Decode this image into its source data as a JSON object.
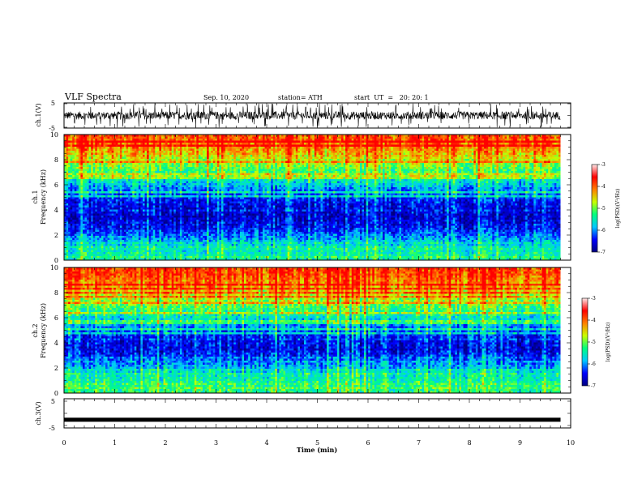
{
  "header": {
    "title": "VLF Spectra",
    "date": "Sep. 10, 2020",
    "station": "station= ATH",
    "start_time": "start  UT  =   20: 20: 1"
  },
  "chart_data": [
    {
      "type": "line",
      "name": "ch1-waveform",
      "ylabel": "ch.1(V)",
      "ylim": [
        -5,
        5
      ],
      "yticks": [
        "5",
        "-5"
      ],
      "xlim": [
        0,
        10
      ],
      "description_values": {
        "data_extent_min": 9.8,
        "typical_envelope": [
          -2.5,
          2.5
        ]
      }
    },
    {
      "type": "heatmap",
      "name": "ch1-spectrogram",
      "ylabel_line1": "ch.1",
      "ylabel_line2": "Frequency (kHz)",
      "ylim": [
        0,
        10
      ],
      "yticks": [
        "0",
        "2",
        "4",
        "6",
        "8",
        "10"
      ],
      "xlim": [
        0,
        10
      ],
      "data_extent_min": 9.8,
      "frequency_profile_kHz": [
        0.5,
        1.5,
        2.5,
        3.5,
        4.5,
        5.5,
        6.5,
        7.5,
        8.5,
        9.5
      ],
      "log_psd_profile": [
        -5.2,
        -5.6,
        -6.3,
        -6.6,
        -6.4,
        -5.9,
        -5.2,
        -4.6,
        -3.9,
        -3.4
      ],
      "colorbar": {
        "label": "log(PSD)(V²/Hz)",
        "range": [
          -7,
          -3
        ],
        "ticks": [
          "-3",
          "-4",
          "-5",
          "-6",
          "-7"
        ]
      }
    },
    {
      "type": "heatmap",
      "name": "ch2-spectrogram",
      "ylabel_line1": "ch.2",
      "ylabel_line2": "Frequency (kHz)",
      "ylim": [
        0,
        10
      ],
      "yticks": [
        "0",
        "2",
        "4",
        "6",
        "8",
        "10"
      ],
      "xlim": [
        0,
        10
      ],
      "data_extent_min": 9.8,
      "frequency_profile_kHz": [
        0.5,
        1.5,
        2.5,
        3.5,
        4.5,
        5.5,
        6.5,
        7.5,
        8.5,
        9.5
      ],
      "log_psd_profile": [
        -5.0,
        -5.3,
        -6.0,
        -6.5,
        -6.3,
        -5.7,
        -5.0,
        -4.4,
        -3.8,
        -3.3
      ],
      "colorbar": {
        "label": "log(PSD)(V²/Hz)",
        "range": [
          -7,
          -3
        ],
        "ticks": [
          "-3",
          "-4",
          "-5",
          "-6",
          "-7"
        ]
      }
    },
    {
      "type": "line",
      "name": "ch3-waveform",
      "ylabel": "ch.3(V)",
      "ylim": [
        -5,
        5
      ],
      "yticks": [
        "5",
        "-5"
      ],
      "xlim": [
        0,
        10
      ],
      "xlabel": "Time (min)",
      "xticks": [
        "0",
        "1",
        "2",
        "3",
        "4",
        "5",
        "6",
        "7",
        "8",
        "9",
        "10"
      ],
      "description_values": {
        "data_extent_min": 9.8,
        "level_V": -2.2
      }
    }
  ],
  "colors": {
    "frame": "#000000",
    "colormap": [
      "#00007f",
      "#0000ff",
      "#00c8ff",
      "#00ff7f",
      "#c8ff00",
      "#ff8000",
      "#ff0000",
      "#ffe8e8"
    ]
  }
}
